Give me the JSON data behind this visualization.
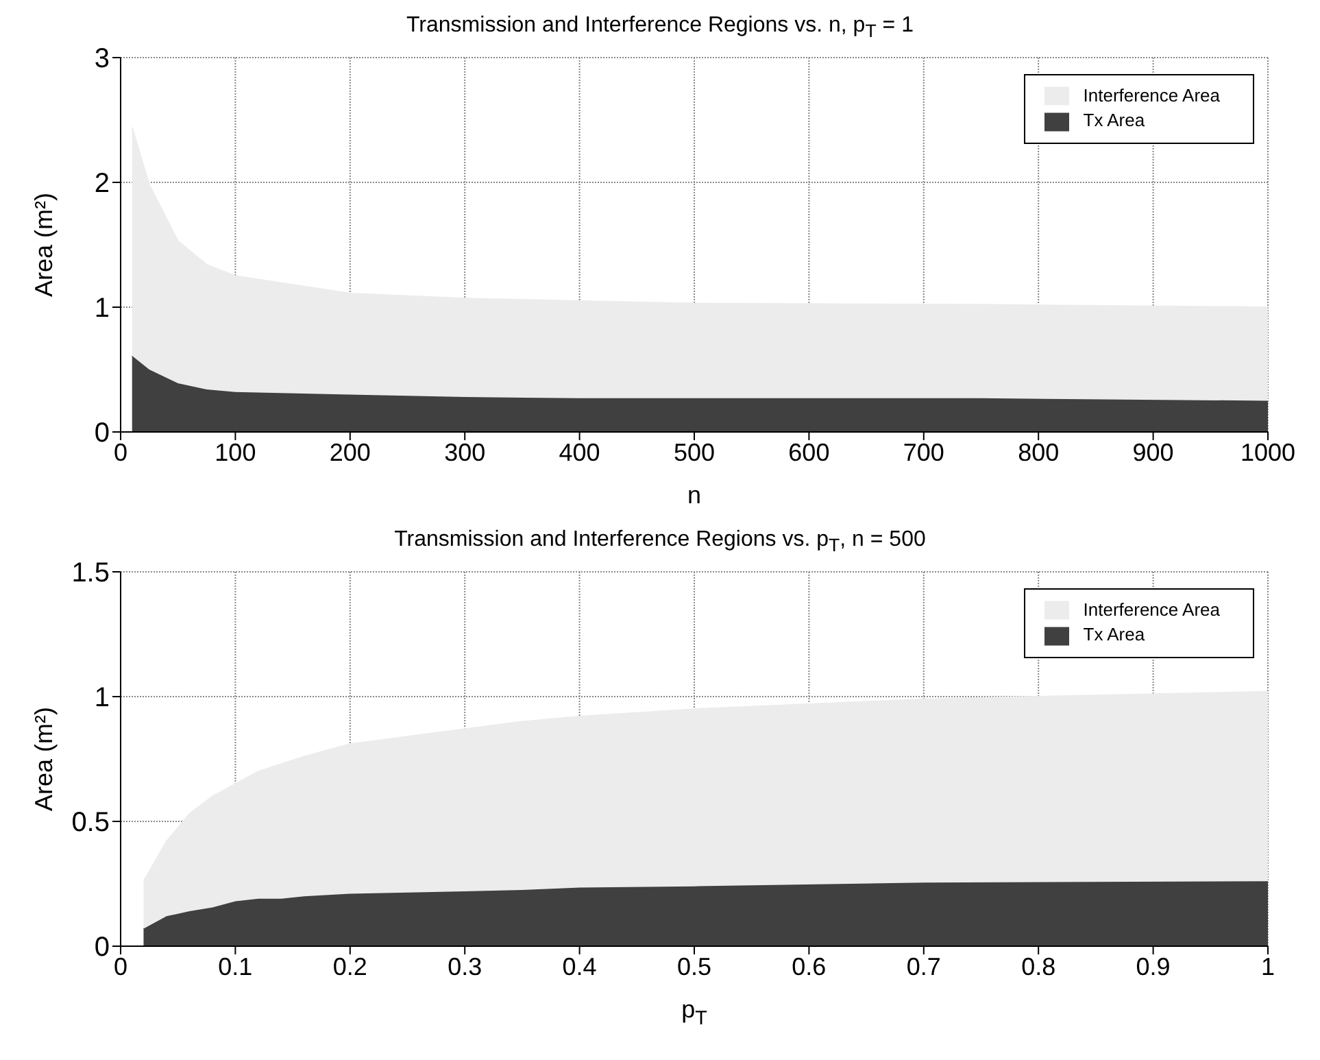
{
  "chart_data": [
    {
      "type": "area",
      "title": "Transmission and Interference Regions  vs. n, p$_{T}$ = 1",
      "xlabel": "n",
      "ylabel": "Area (m²)",
      "stacked": true,
      "grid": true,
      "legend": "top right",
      "x": [
        10,
        25,
        50,
        75,
        100,
        200,
        300,
        400,
        500,
        750,
        1000
      ],
      "series": [
        {
          "name": "Tx Area",
          "color": "#404040",
          "values": [
            0.61,
            0.5,
            0.39,
            0.34,
            0.32,
            0.3,
            0.28,
            0.27,
            0.27,
            0.27,
            0.25
          ]
        },
        {
          "name": "Interference Area",
          "color": "#ececec",
          "values": [
            1.83,
            1.48,
            1.14,
            1.0,
            0.93,
            0.81,
            0.79,
            0.78,
            0.76,
            0.75,
            0.75
          ]
        }
      ],
      "xlim": [
        0,
        1000
      ],
      "xticks": [
        0,
        100,
        200,
        300,
        400,
        500,
        600,
        700,
        800,
        900,
        1000
      ],
      "ylim": [
        0,
        3
      ],
      "yticks": [
        0,
        1,
        2,
        3
      ]
    },
    {
      "type": "area",
      "title": "Transmission and Interference Regions  vs. p$_{T}$, n = 500",
      "xlabel": "p$_{T}$",
      "ylabel": "Area (m²)",
      "stacked": true,
      "grid": true,
      "legend": "top right",
      "x": [
        0.02,
        0.04,
        0.06,
        0.08,
        0.1,
        0.12,
        0.14,
        0.16,
        0.2,
        0.3,
        0.35,
        0.4,
        0.5,
        0.7,
        1
      ],
      "series": [
        {
          "name": "Tx Area",
          "color": "#404040",
          "values": [
            0.07,
            0.12,
            0.14,
            0.155,
            0.18,
            0.19,
            0.19,
            0.2,
            0.21,
            0.22,
            0.225,
            0.235,
            0.24,
            0.255,
            0.26
          ]
        },
        {
          "name": "Interference Area",
          "color": "#ececec",
          "values": [
            0.19,
            0.3,
            0.39,
            0.445,
            0.47,
            0.51,
            0.54,
            0.56,
            0.6,
            0.65,
            0.675,
            0.685,
            0.71,
            0.735,
            0.76
          ]
        }
      ],
      "xlim": [
        0,
        1
      ],
      "xticks": [
        0,
        0.1,
        0.2,
        0.3,
        0.4,
        0.5,
        0.6,
        0.7,
        0.8,
        0.9,
        1
      ],
      "ylim": [
        0,
        1.5
      ],
      "yticks": [
        0,
        0.5,
        1,
        1.5
      ]
    }
  ]
}
